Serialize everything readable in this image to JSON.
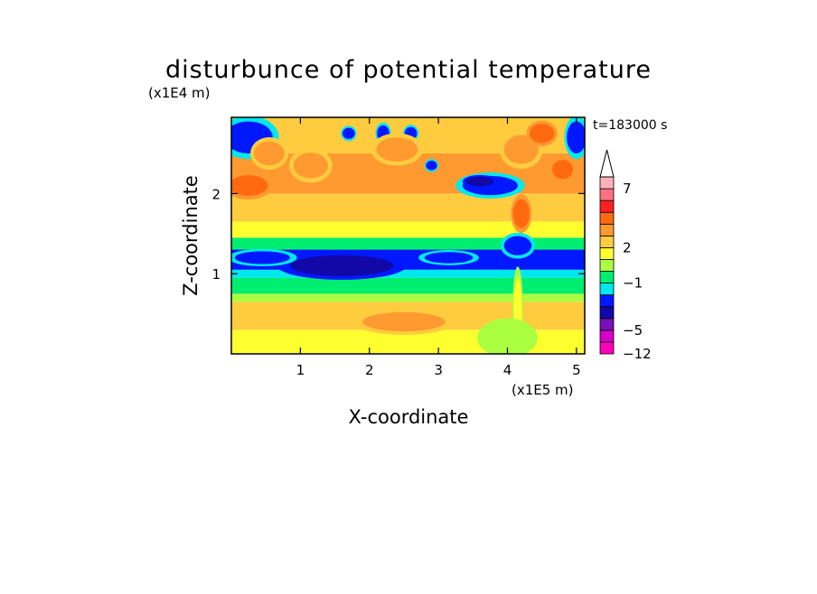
{
  "chart_data": {
    "type": "heatmap",
    "title": "disturbunce of potential temperature",
    "xlabel": "X-coordinate",
    "ylabel": "Z-coordinate",
    "x_unit": "(x1E5 m)",
    "y_unit": "(x1E4 m)",
    "time_label": "t=183000 s",
    "xlim": [
      0,
      5.12
    ],
    "ylim": [
      0,
      2.95
    ],
    "x_ticks": [
      "1",
      "2",
      "3",
      "4",
      "5"
    ],
    "x_tick_values": [
      1,
      2,
      3,
      4,
      5
    ],
    "y_ticks": [
      "1",
      "2"
    ],
    "y_tick_values": [
      1,
      2
    ],
    "colorbar": {
      "colors": [
        "#ff00bb",
        "#d600c8",
        "#7a10b8",
        "#1208a8",
        "#0018ff",
        "#00e8ee",
        "#00ee70",
        "#aaff40",
        "#ffff30",
        "#ffcc40",
        "#ff9a30",
        "#ff6a10",
        "#ff2020",
        "#ff7080",
        "#ffb0b8"
      ],
      "extend_top_color": "#ffffff",
      "tick_labels": [
        "7",
        "2",
        "−1",
        "−5",
        "−12"
      ],
      "tick_values": [
        7,
        2,
        -1,
        -5,
        -12
      ]
    },
    "layers": [
      {
        "z_from": 0.0,
        "z_to": 0.3,
        "level": 1
      },
      {
        "z_from": 0.3,
        "z_to": 0.65,
        "level": 2
      },
      {
        "z_from": 0.65,
        "z_to": 0.75,
        "level": 0
      },
      {
        "z_from": 0.75,
        "z_to": 0.95,
        "level": -1
      },
      {
        "z_from": 0.95,
        "z_to": 1.05,
        "level": -2
      },
      {
        "z_from": 1.05,
        "z_to": 1.3,
        "level": -3
      },
      {
        "z_from": 1.3,
        "z_to": 1.45,
        "level": -1
      },
      {
        "z_from": 1.45,
        "z_to": 1.65,
        "level": 1
      },
      {
        "z_from": 1.65,
        "z_to": 2.0,
        "level": 2
      },
      {
        "z_from": 2.0,
        "z_to": 2.5,
        "level": 3
      },
      {
        "z_from": 2.5,
        "z_to": 2.95,
        "level": 2
      }
    ],
    "features": [
      {
        "x": 0.25,
        "z": 2.1,
        "rx": 0.28,
        "rz": 0.13,
        "level": 4
      },
      {
        "x": 0.25,
        "z": 2.7,
        "rx": 0.35,
        "rz": 0.2,
        "level": -3
      },
      {
        "x": 0.55,
        "z": 2.5,
        "rx": 0.22,
        "rz": 0.15,
        "level": 3
      },
      {
        "x": 1.15,
        "z": 2.35,
        "rx": 0.25,
        "rz": 0.16,
        "level": 3
      },
      {
        "x": 1.7,
        "z": 2.75,
        "rx": 0.09,
        "rz": 0.07,
        "level": -3
      },
      {
        "x": 2.2,
        "z": 2.75,
        "rx": 0.09,
        "rz": 0.1,
        "level": -3
      },
      {
        "x": 2.6,
        "z": 2.75,
        "rx": 0.09,
        "rz": 0.08,
        "level": -3
      },
      {
        "x": 2.9,
        "z": 2.35,
        "rx": 0.08,
        "rz": 0.06,
        "level": -3
      },
      {
        "x": 2.4,
        "z": 2.55,
        "rx": 0.3,
        "rz": 0.15,
        "level": 3
      },
      {
        "x": 3.75,
        "z": 2.1,
        "rx": 0.4,
        "rz": 0.12,
        "level": -3
      },
      {
        "x": 3.6,
        "z": 2.15,
        "rx": 0.2,
        "rz": 0.06,
        "level": -4
      },
      {
        "x": 4.2,
        "z": 2.55,
        "rx": 0.25,
        "rz": 0.18,
        "level": 3
      },
      {
        "x": 4.5,
        "z": 2.75,
        "rx": 0.18,
        "rz": 0.12,
        "level": 4
      },
      {
        "x": 4.8,
        "z": 2.3,
        "rx": 0.15,
        "rz": 0.12,
        "level": 4
      },
      {
        "x": 5.0,
        "z": 2.7,
        "rx": 0.14,
        "rz": 0.2,
        "level": -3
      },
      {
        "x": 1.6,
        "z": 1.1,
        "rx": 0.75,
        "rz": 0.13,
        "level": -4
      },
      {
        "x": 0.45,
        "z": 1.2,
        "rx": 0.4,
        "rz": 0.08,
        "level": -3
      },
      {
        "x": 3.15,
        "z": 1.2,
        "rx": 0.35,
        "rz": 0.07,
        "level": -3
      },
      {
        "x": 4.15,
        "z": 1.35,
        "rx": 0.2,
        "rz": 0.12,
        "level": -3
      },
      {
        "x": 4.15,
        "z": 0.55,
        "rx": 0.06,
        "rz": 0.4,
        "level": 1
      },
      {
        "x": 4.2,
        "z": 1.75,
        "rx": 0.12,
        "rz": 0.18,
        "level": 4
      },
      {
        "x": 4.0,
        "z": 0.2,
        "rx": 0.35,
        "rz": 0.18,
        "level": 0
      },
      {
        "x": 2.5,
        "z": 0.4,
        "rx": 0.6,
        "rz": 0.12,
        "level": 3
      }
    ]
  }
}
